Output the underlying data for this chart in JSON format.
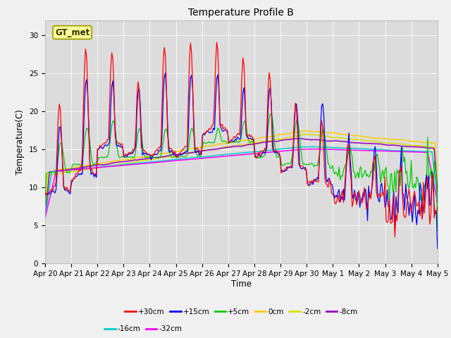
{
  "title": "Temperature Profile B",
  "xlabel": "Time",
  "ylabel": "Temperature(C)",
  "ylim": [
    0,
    32
  ],
  "yticks": [
    0,
    5,
    10,
    15,
    20,
    25,
    30
  ],
  "fig_bg": "#f0f0f0",
  "plot_bg": "#dcdcdc",
  "series": [
    {
      "label": "+30cm",
      "color": "#ff0000",
      "lw": 0.9,
      "zorder": 5
    },
    {
      "label": "+15cm",
      "color": "#0000ff",
      "lw": 0.9,
      "zorder": 4
    },
    {
      "label": "+5cm",
      "color": "#00cc00",
      "lw": 0.9,
      "zorder": 3
    },
    {
      "label": "0cm",
      "color": "#ffcc00",
      "lw": 1.1,
      "zorder": 2
    },
    {
      "label": "-2cm",
      "color": "#dddd00",
      "lw": 1.1,
      "zorder": 2
    },
    {
      "label": "-8cm",
      "color": "#9900bb",
      "lw": 1.1,
      "zorder": 2
    },
    {
      "label": "-16cm",
      "color": "#00cccc",
      "lw": 1.1,
      "zorder": 2
    },
    {
      "label": "-32cm",
      "color": "#ff00ff",
      "lw": 1.1,
      "zorder": 2
    }
  ],
  "xtick_labels": [
    "Apr 20",
    "Apr 21",
    "Apr 22",
    "Apr 23",
    "Apr 24",
    "Apr 25",
    "Apr 26",
    "Apr 27",
    "Apr 28",
    "Apr 29",
    "Apr 30",
    "May 1",
    "May 2",
    "May 3",
    "May 4",
    "May 5"
  ],
  "annotation_text": "GT_met",
  "ann_fc": "#ffff99",
  "ann_ec": "#999900",
  "legend_rows": [
    [
      "+30cm",
      "#ff0000",
      "+15cm",
      "#0000ff",
      "+5cm",
      "#00cc00",
      "0cm",
      "#ffcc00",
      "-2cm",
      "#dddd00",
      "-8cm",
      "#9900bb"
    ],
    [
      "-16cm",
      "#00cccc",
      "-32cm",
      "#ff00ff"
    ]
  ]
}
